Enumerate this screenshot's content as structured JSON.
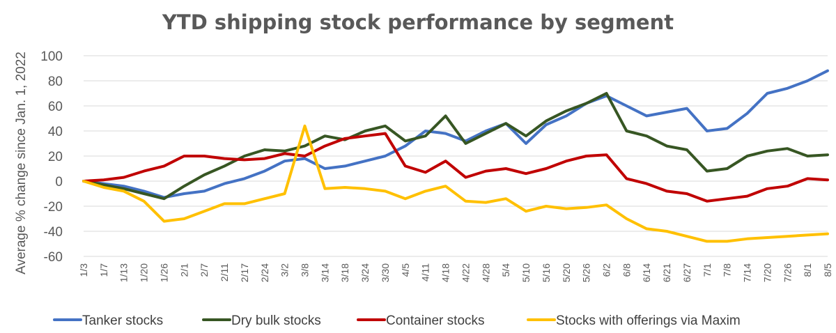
{
  "chart_data": {
    "type": "line",
    "title": "YTD shipping stock performance by segment",
    "xlabel": "",
    "ylabel": "Average % change since Jan. 1, 2022",
    "ylim": [
      -60,
      100
    ],
    "yticks": [
      100,
      80,
      60,
      40,
      20,
      0,
      -20,
      -40,
      -60
    ],
    "grid": true,
    "legend_position": "bottom",
    "x_tick_labels": [
      "1/3",
      "1/7",
      "1/13",
      "1/20",
      "1/26",
      "2/1",
      "2/7",
      "2/11",
      "2/17",
      "2/24",
      "3/2",
      "3/8",
      "3/14",
      "3/18",
      "3/24",
      "3/30",
      "4/5",
      "4/11",
      "4/18",
      "4/22",
      "4/28",
      "5/4",
      "5/10",
      "5/16",
      "5/20",
      "5/26",
      "6/2",
      "6/8",
      "6/14",
      "6/21",
      "6/27",
      "7/1",
      "7/8",
      "7/14",
      "7/20",
      "7/26",
      "8/1",
      "8/5"
    ],
    "series": [
      {
        "name": "Tanker stocks",
        "color": "#4472c4",
        "values": [
          0,
          -2,
          -4,
          -8,
          -13,
          -10,
          -8,
          -2,
          2,
          8,
          16,
          18,
          10,
          12,
          16,
          20,
          28,
          40,
          38,
          32,
          40,
          46,
          30,
          45,
          52,
          62,
          68,
          60,
          52,
          55,
          58,
          40,
          42,
          54,
          70,
          74,
          80,
          88
        ]
      },
      {
        "name": "Dry bulk stocks",
        "color": "#375623",
        "values": [
          0,
          -3,
          -6,
          -10,
          -14,
          -4,
          5,
          12,
          20,
          25,
          24,
          28,
          36,
          33,
          40,
          44,
          32,
          36,
          52,
          30,
          38,
          46,
          36,
          48,
          56,
          62,
          70,
          40,
          36,
          28,
          25,
          8,
          10,
          20,
          24,
          26,
          20,
          21
        ]
      },
      {
        "name": "Container stocks",
        "color": "#c00000",
        "values": [
          0,
          1,
          3,
          8,
          12,
          20,
          20,
          18,
          17,
          18,
          22,
          20,
          28,
          34,
          36,
          38,
          12,
          7,
          16,
          3,
          8,
          10,
          6,
          10,
          16,
          20,
          21,
          2,
          -2,
          -8,
          -10,
          -16,
          -14,
          -12,
          -6,
          -4,
          2,
          1
        ]
      },
      {
        "name": "Stocks with offerings via Maxim",
        "color": "#ffc000",
        "values": [
          0,
          -5,
          -8,
          -16,
          -32,
          -30,
          -24,
          -18,
          -18,
          -14,
          -10,
          44,
          -6,
          -5,
          -6,
          -8,
          -14,
          -8,
          -4,
          -16,
          -17,
          -14,
          -24,
          -20,
          -22,
          -21,
          -19,
          -30,
          -38,
          -40,
          -44,
          -48,
          -48,
          -46,
          -45,
          -44,
          -43,
          -42
        ]
      }
    ]
  }
}
